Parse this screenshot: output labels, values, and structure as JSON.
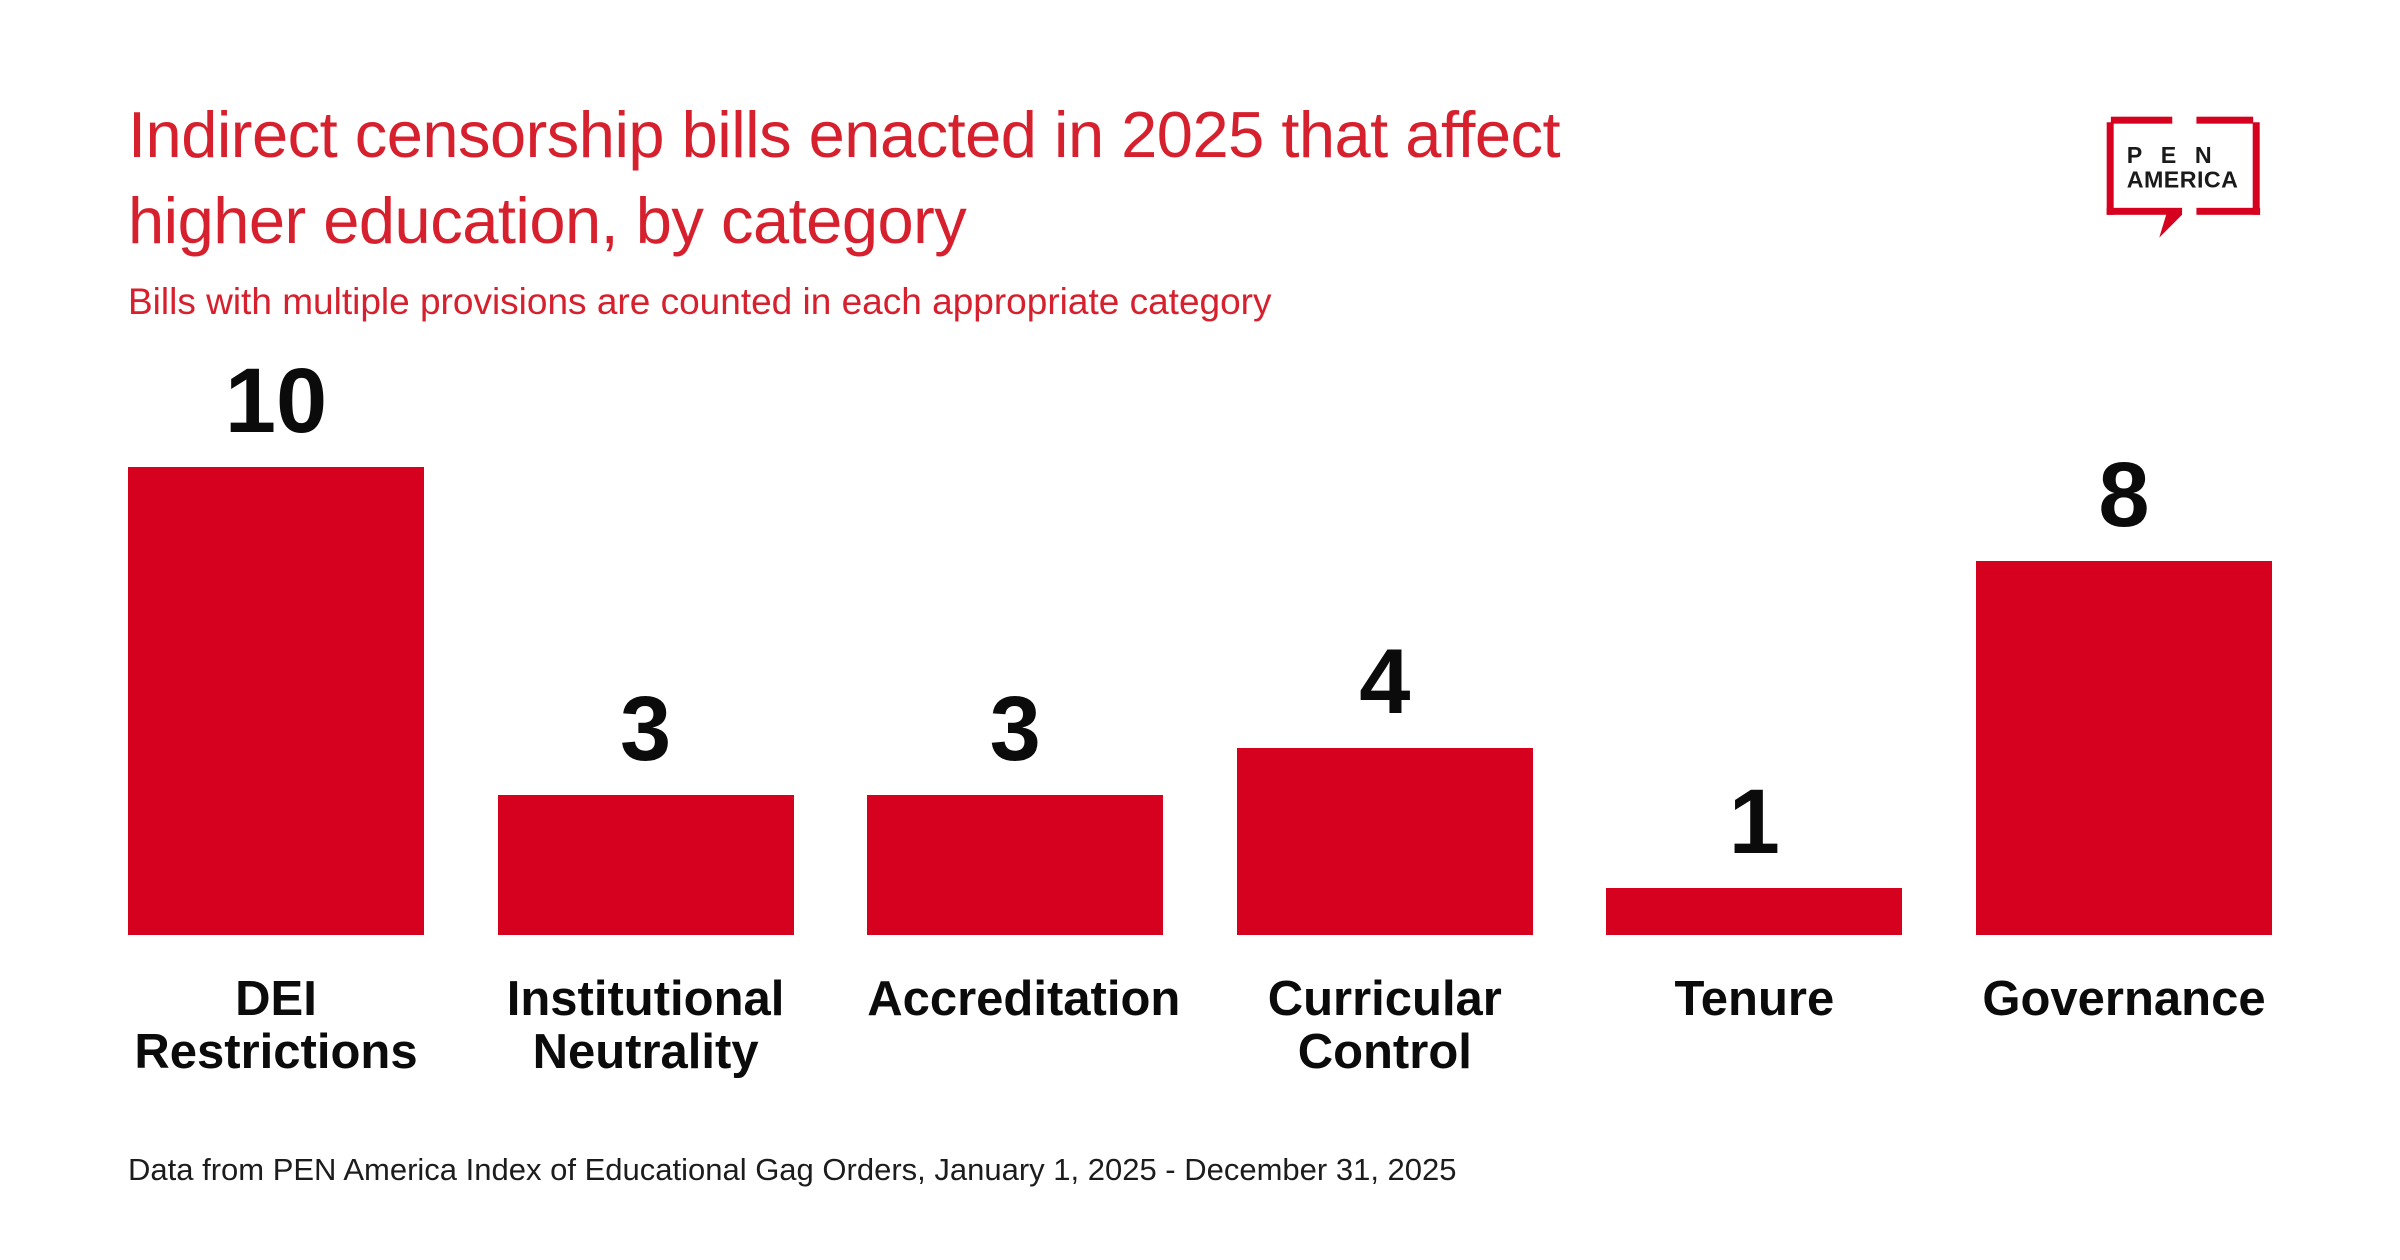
{
  "page": {
    "title_line1": "Indirect censorship bills enacted in 2025 that affect",
    "title_line2": "higher education, by category",
    "subtitle": "Bills with multiple provisions are counted in each appropriate category",
    "source": "Data from PEN America Index of Educational Gag Orders, January 1, 2025 - December 31, 2025"
  },
  "logo": {
    "line1": "PEN",
    "line2": "AMERICA"
  },
  "colors": {
    "brand_red": "#D5011F",
    "title_red": "#D6202D",
    "text_black": "#0b0b0b"
  },
  "chart_data": {
    "type": "bar",
    "title": "Indirect censorship bills enacted in 2025 that affect higher education, by category",
    "subtitle": "Bills with multiple provisions are counted in each appropriate category",
    "categories": [
      "DEI Restrictions",
      "Institutional Neutrality",
      "Accreditation",
      "Curricular Control",
      "Tenure",
      "Governance"
    ],
    "category_label_lines": [
      [
        "DEI",
        "Restrictions"
      ],
      [
        "Institutional",
        "Neutrality"
      ],
      [
        "Accreditation"
      ],
      [
        "Curricular",
        "Control"
      ],
      [
        "Tenure"
      ],
      [
        "Governance"
      ]
    ],
    "values": [
      10,
      3,
      3,
      4,
      1,
      8
    ],
    "bar_color": "#D5011F",
    "data_labels_shown": true,
    "xlabel": "",
    "ylabel": "",
    "ylim": [
      0,
      10
    ],
    "gridlines": false,
    "axes_shown": false,
    "legend": "none",
    "source_note": "Data from PEN America Index of Educational Gag Orders, January 1, 2025 - December 31, 2025"
  }
}
